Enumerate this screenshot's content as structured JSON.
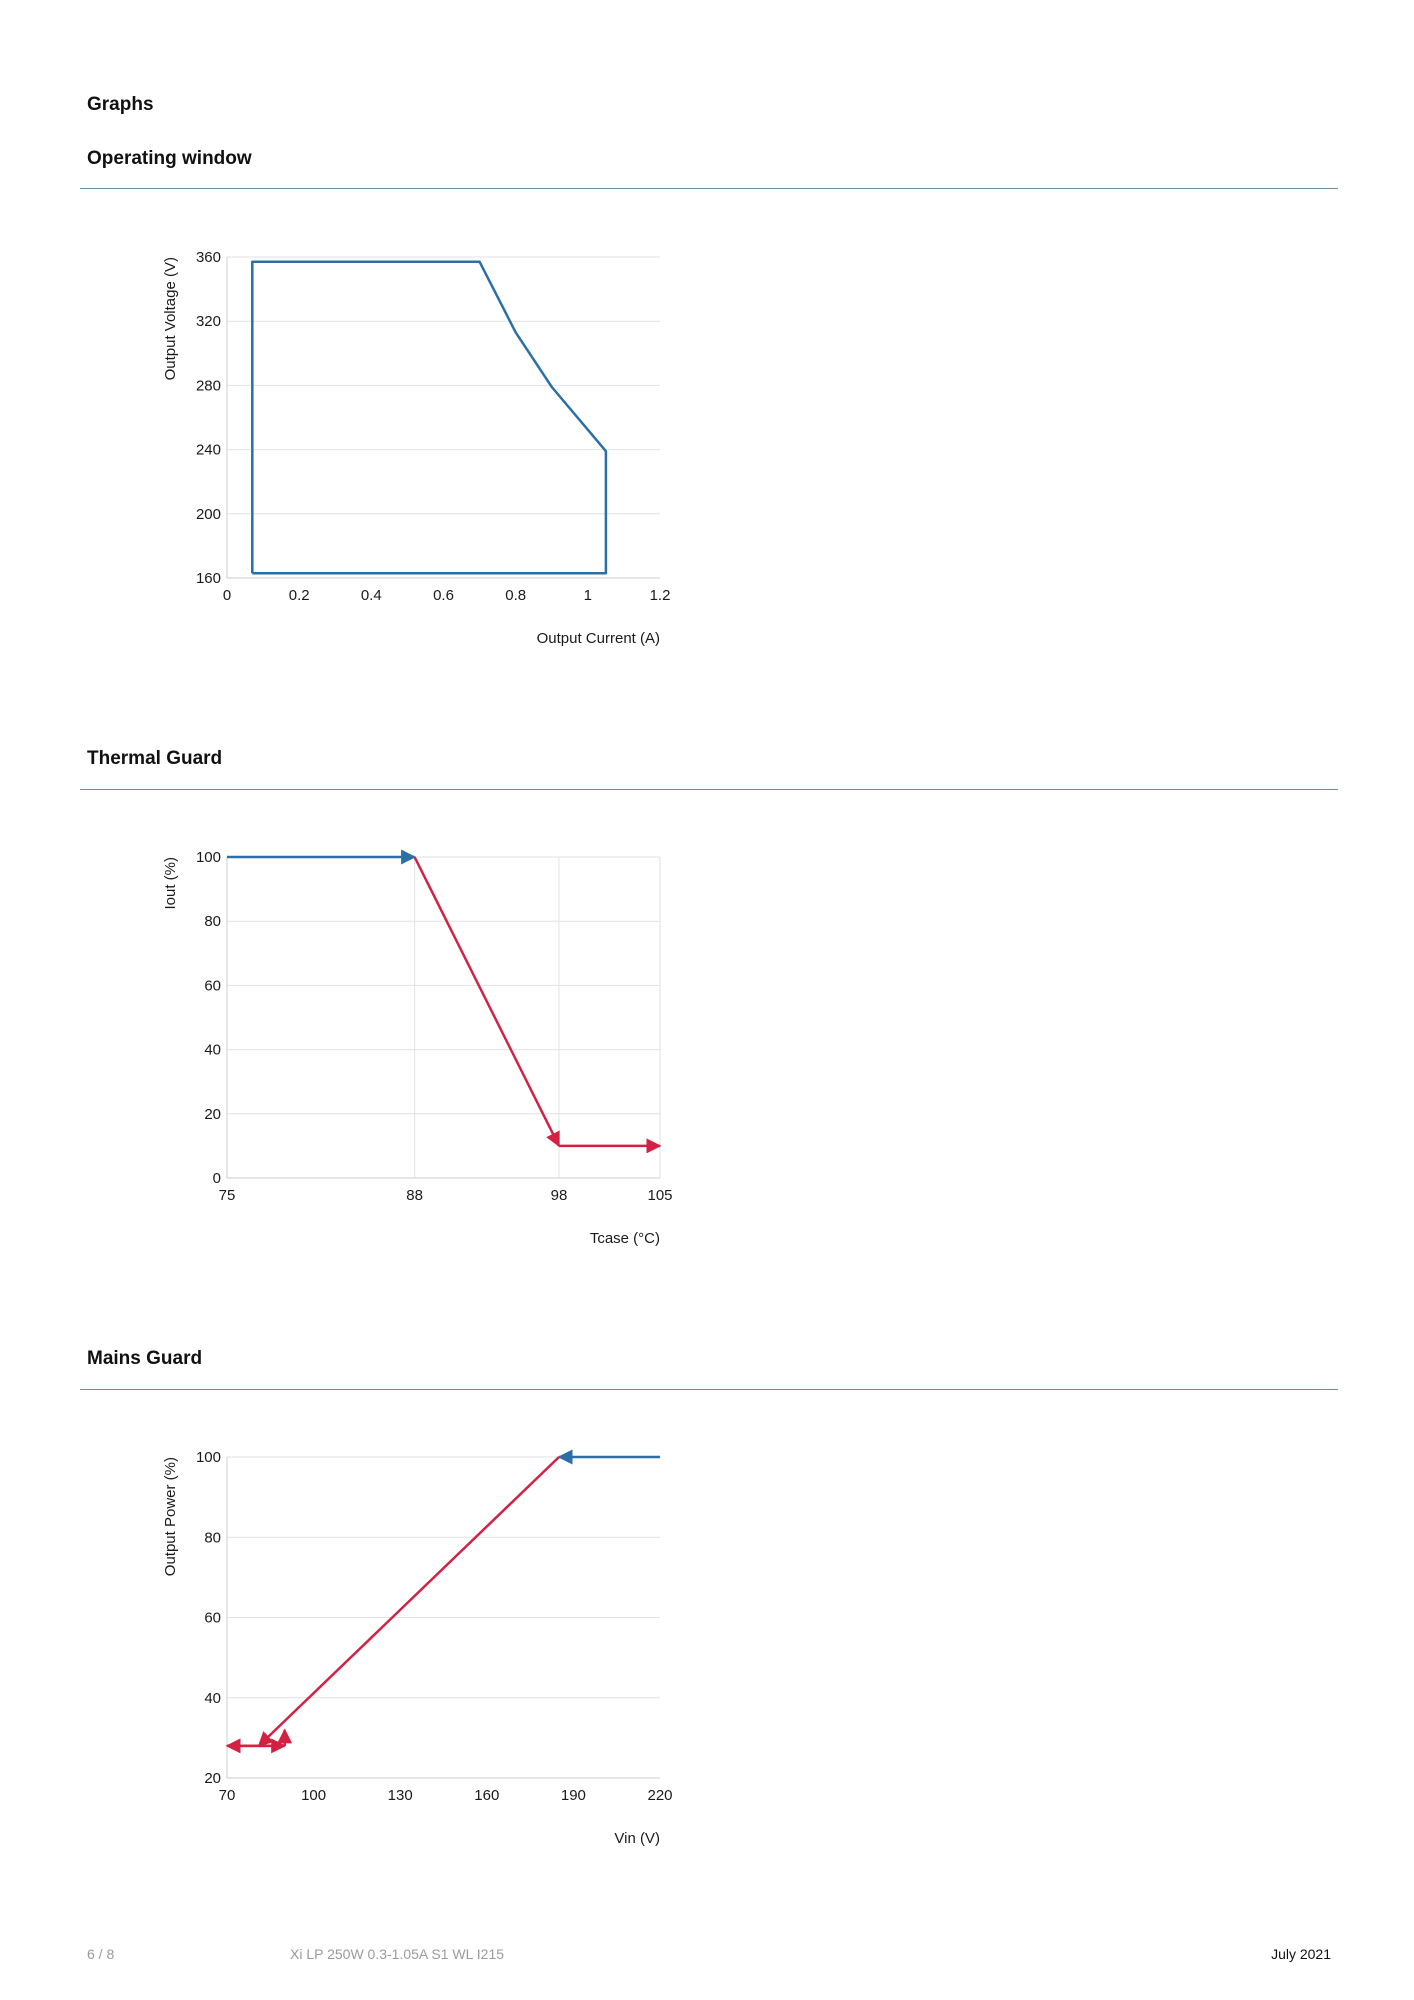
{
  "heading": "Graphs",
  "footer": {
    "page": "6 / 8",
    "product": "Xi LP 250W 0.3-1.05A S1 WL I215",
    "date": "July 2021"
  },
  "sections": [
    {
      "title": "Operating window"
    },
    {
      "title": "Thermal Guard"
    },
    {
      "title": "Mains Guard"
    }
  ],
  "colors": {
    "blue": "#2a6fa8",
    "red": "#d42042",
    "rule": "#6f8ea5",
    "grid": "#e2e2e2"
  },
  "chart_data": [
    {
      "type": "line",
      "title": "",
      "xlabel": "Output Current (A)",
      "ylabel": "Output Voltage (V)",
      "xlim": [
        0,
        1.2
      ],
      "ylim": [
        160,
        360
      ],
      "xticks": [
        0,
        0.2,
        0.4,
        0.6,
        0.8,
        1,
        1.2
      ],
      "xtick_labels": [
        "0",
        "0.2",
        "0.4",
        "0.6",
        "0.8",
        "1",
        "1.2"
      ],
      "yticks": [
        160,
        200,
        240,
        280,
        320,
        360
      ],
      "ytick_labels": [
        "160",
        "200",
        "240",
        "280",
        "320",
        "360"
      ],
      "grid_x": false,
      "grid_y": true,
      "series": [
        {
          "color": "#2a6fa8",
          "points": [
            [
              0.07,
              163
            ],
            [
              0.07,
              357
            ],
            [
              0.7,
              357
            ],
            [
              0.8,
              313
            ],
            [
              0.9,
              279
            ],
            [
              1.05,
              239
            ],
            [
              1.05,
              163
            ],
            [
              0.07,
              163
            ]
          ]
        }
      ]
    },
    {
      "type": "line",
      "title": "",
      "xlabel": "Tcase (°C)",
      "ylabel": "Iout (%)",
      "xlim": [
        75,
        105
      ],
      "ylim": [
        0,
        100
      ],
      "xticks": [
        75,
        88,
        98,
        105
      ],
      "xtick_labels": [
        "75",
        "88",
        "98",
        "105"
      ],
      "yticks": [
        0,
        20,
        40,
        60,
        80,
        100
      ],
      "ytick_labels": [
        "0",
        "20",
        "40",
        "60",
        "80",
        "100"
      ],
      "grid_x": true,
      "grid_y": true,
      "series": [
        {
          "color": "#2a6fa8",
          "points": [
            [
              75,
              100
            ],
            [
              88,
              100
            ]
          ],
          "arrow_end": true
        },
        {
          "color": "#d42042",
          "points": [
            [
              88,
              100
            ],
            [
              98,
              10
            ]
          ],
          "arrow_end": true
        },
        {
          "color": "#d42042",
          "points": [
            [
              98,
              10
            ],
            [
              105,
              10
            ]
          ],
          "arrow_end": true
        }
      ]
    },
    {
      "type": "line",
      "title": "",
      "xlabel": "Vin (V)",
      "ylabel": "Output Power (%)",
      "xlim": [
        70,
        220
      ],
      "ylim": [
        20,
        100
      ],
      "xticks": [
        70,
        100,
        130,
        160,
        190,
        220
      ],
      "xtick_labels": [
        "70",
        "100",
        "130",
        "160",
        "190",
        "220"
      ],
      "yticks": [
        20,
        40,
        60,
        80,
        100
      ],
      "ytick_labels": [
        "20",
        "40",
        "60",
        "80",
        "100"
      ],
      "grid_x": false,
      "grid_y": true,
      "series": [
        {
          "color": "#2a6fa8",
          "points": [
            [
              220,
              100
            ],
            [
              185,
              100
            ]
          ],
          "arrow_end": true
        },
        {
          "color": "#d42042",
          "points": [
            [
              185,
              100
            ],
            [
              81,
              28
            ]
          ],
          "arrow_end": true
        },
        {
          "color": "#d42042",
          "points": [
            [
              85,
              28
            ],
            [
              70,
              28
            ]
          ],
          "arrow_end": true
        },
        {
          "color": "#d42042",
          "points": [
            [
              72,
              28
            ],
            [
              90,
              28
            ]
          ],
          "arrow_end": true
        },
        {
          "color": "#d42042",
          "points": [
            [
              90,
              28
            ],
            [
              90,
              32
            ]
          ],
          "arrow_end": true
        }
      ]
    }
  ]
}
